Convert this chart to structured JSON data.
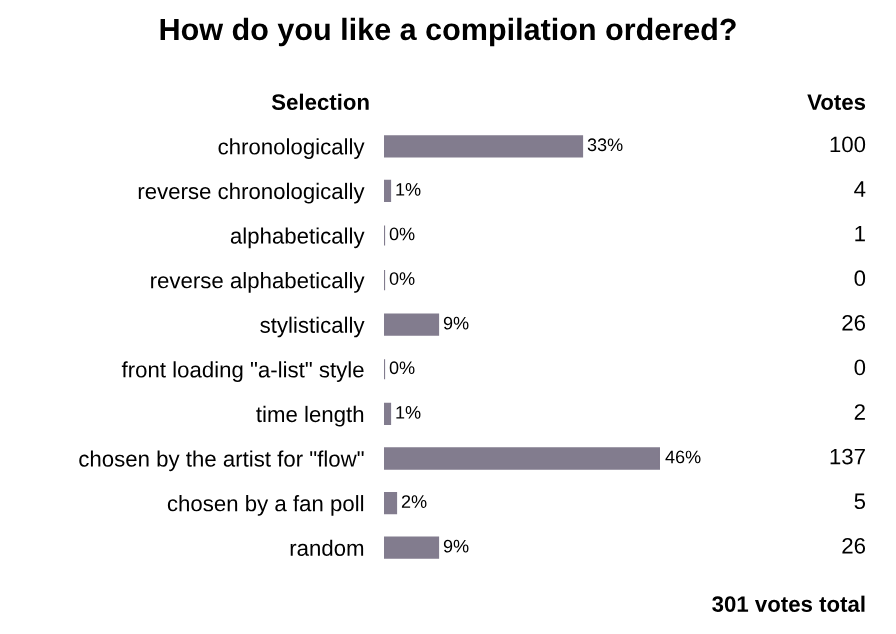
{
  "chart_data": {
    "type": "bar",
    "orientation": "horizontal",
    "title": "How do you like a compilation ordered?",
    "categories": [
      "chronologically",
      "reverse chronologically",
      "alphabetically",
      "reverse alphabetically",
      "stylistically",
      "front loading \"a-list\" style",
      "time length",
      "chosen by the artist for \"flow\"",
      "chosen by a fan poll",
      "random"
    ],
    "values": [
      33,
      1,
      0,
      0,
      9,
      0,
      1,
      46,
      2,
      9
    ],
    "value_labels": [
      "33%",
      "1%",
      "0%",
      "0%",
      "9%",
      "0%",
      "1%",
      "46%",
      "2%",
      "9%"
    ],
    "color": "#827c8e",
    "annotations": [
      "Selection",
      "Votes",
      "100",
      "4",
      "1",
      "0",
      "26",
      "0",
      "2",
      "137",
      "5",
      "26",
      "301 votes total"
    ]
  }
}
